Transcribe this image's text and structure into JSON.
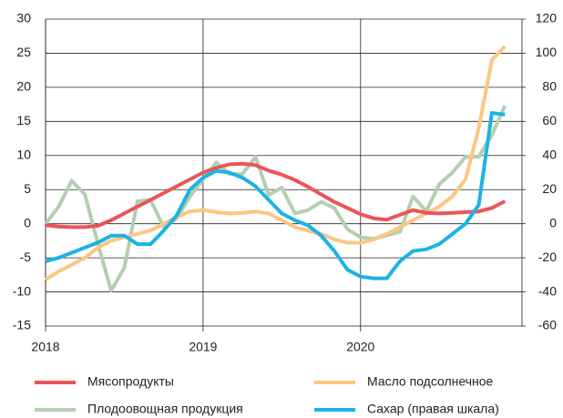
{
  "chart_data": {
    "type": "line",
    "categories": [
      "2018",
      null,
      null,
      null,
      null,
      null,
      null,
      null,
      null,
      null,
      null,
      null,
      "2019",
      null,
      null,
      null,
      null,
      null,
      null,
      null,
      null,
      null,
      null,
      null,
      "2020",
      null,
      null,
      null,
      null,
      null,
      null,
      null,
      null,
      null,
      null,
      null
    ],
    "series": [
      {
        "name": "Мясопродукты",
        "color": "#ec5457",
        "values": [
          -0.2,
          -0.4,
          -0.5,
          -0.5,
          -0.3,
          0.5,
          1.5,
          2.5,
          3.5,
          4.5,
          5.5,
          6.5,
          7.5,
          8.2,
          8.7,
          8.8,
          8.6,
          7.8,
          7.2,
          6.4,
          5.4,
          4.3,
          3.2,
          2.3,
          1.4,
          0.8,
          0.6,
          1.3,
          2.0,
          1.6,
          1.5,
          1.6,
          1.7,
          1.8,
          2.3,
          3.3
        ]
      },
      {
        "name": "Масло подсолнечное",
        "color": "#fcc683",
        "values": [
          -8.2,
          -7,
          -6,
          -5,
          -3.5,
          -2.5,
          -2,
          -1.5,
          -1,
          0,
          1,
          1.8,
          2.0,
          1.7,
          1.5,
          1.6,
          1.8,
          1.5,
          0.5,
          -0.5,
          -1,
          -1.5,
          -2.3,
          -2.8,
          -2.8,
          -2.3,
          -1.5,
          -0.5,
          0.5,
          1.5,
          2.5,
          4,
          6.5,
          14,
          24,
          26
        ]
      },
      {
        "name": "Плодоовощная продукция",
        "color": "#b3cfb0",
        "values": [
          0,
          2.5,
          6.3,
          4.3,
          -3,
          -9.8,
          -6.5,
          3.3,
          3.5,
          -0.5,
          0.8,
          4,
          6.5,
          9,
          7.3,
          7.3,
          9.8,
          4.2,
          5.3,
          1.5,
          2,
          3.2,
          2.3,
          -0.8,
          -2,
          -2.2,
          -1.7,
          -1.2,
          4,
          1.8,
          5.8,
          7.5,
          9.8,
          9.8,
          13,
          17.3
        ]
      },
      {
        "name": "Сахар (правая шкала)",
        "color": "#1cb4e3",
        "axis": "y2",
        "values": [
          -22,
          -20,
          -17,
          -14,
          -11,
          -7,
          -7,
          -12,
          -12,
          -4,
          5,
          20,
          27,
          31,
          30,
          27,
          22,
          14,
          6,
          2,
          -1,
          -7,
          -16,
          -27,
          -31,
          -32,
          -32,
          -22,
          -16,
          -15,
          -12,
          -6,
          0,
          11,
          65,
          64
        ]
      }
    ],
    "ylim": [
      -15,
      30
    ],
    "yticks": [
      -15,
      -10,
      -5,
      0,
      5,
      10,
      15,
      20,
      25,
      30
    ],
    "y2lim": [
      -60,
      120
    ],
    "y2ticks": [
      -60,
      -40,
      -20,
      0,
      20,
      40,
      60,
      80,
      100,
      120
    ],
    "grid": true
  }
}
